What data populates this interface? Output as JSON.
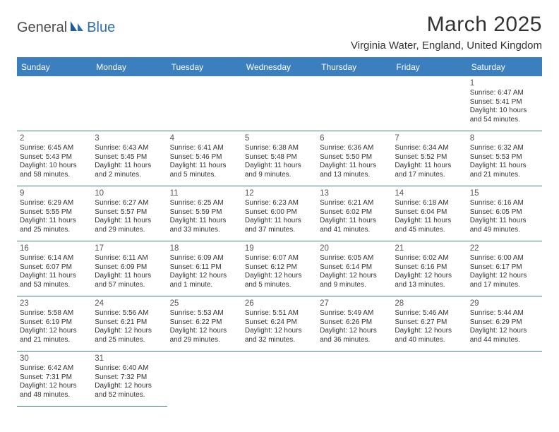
{
  "logo": {
    "text_dark": "General",
    "text_blue": "Blue"
  },
  "title": "March 2025",
  "location": "Virginia Water, England, United Kingdom",
  "colors": {
    "header_bg": "#3b7fbf",
    "header_text": "#ffffff",
    "rule": "#3b7fbf",
    "body_text": "#333333",
    "logo_dark": "#4a4a4a",
    "logo_blue": "#2f6fb0",
    "page_bg": "#ffffff"
  },
  "weekdays": [
    "Sunday",
    "Monday",
    "Tuesday",
    "Wednesday",
    "Thursday",
    "Friday",
    "Saturday"
  ],
  "labels": {
    "sunrise": "Sunrise:",
    "sunset": "Sunset:",
    "daylight": "Daylight:"
  },
  "weeks": [
    [
      null,
      null,
      null,
      null,
      null,
      null,
      {
        "n": "1",
        "sr": "6:47 AM",
        "ss": "5:41 PM",
        "dl": "10 hours and 54 minutes."
      }
    ],
    [
      {
        "n": "2",
        "sr": "6:45 AM",
        "ss": "5:43 PM",
        "dl": "10 hours and 58 minutes."
      },
      {
        "n": "3",
        "sr": "6:43 AM",
        "ss": "5:45 PM",
        "dl": "11 hours and 2 minutes."
      },
      {
        "n": "4",
        "sr": "6:41 AM",
        "ss": "5:46 PM",
        "dl": "11 hours and 5 minutes."
      },
      {
        "n": "5",
        "sr": "6:38 AM",
        "ss": "5:48 PM",
        "dl": "11 hours and 9 minutes."
      },
      {
        "n": "6",
        "sr": "6:36 AM",
        "ss": "5:50 PM",
        "dl": "11 hours and 13 minutes."
      },
      {
        "n": "7",
        "sr": "6:34 AM",
        "ss": "5:52 PM",
        "dl": "11 hours and 17 minutes."
      },
      {
        "n": "8",
        "sr": "6:32 AM",
        "ss": "5:53 PM",
        "dl": "11 hours and 21 minutes."
      }
    ],
    [
      {
        "n": "9",
        "sr": "6:29 AM",
        "ss": "5:55 PM",
        "dl": "11 hours and 25 minutes."
      },
      {
        "n": "10",
        "sr": "6:27 AM",
        "ss": "5:57 PM",
        "dl": "11 hours and 29 minutes."
      },
      {
        "n": "11",
        "sr": "6:25 AM",
        "ss": "5:59 PM",
        "dl": "11 hours and 33 minutes."
      },
      {
        "n": "12",
        "sr": "6:23 AM",
        "ss": "6:00 PM",
        "dl": "11 hours and 37 minutes."
      },
      {
        "n": "13",
        "sr": "6:21 AM",
        "ss": "6:02 PM",
        "dl": "11 hours and 41 minutes."
      },
      {
        "n": "14",
        "sr": "6:18 AM",
        "ss": "6:04 PM",
        "dl": "11 hours and 45 minutes."
      },
      {
        "n": "15",
        "sr": "6:16 AM",
        "ss": "6:05 PM",
        "dl": "11 hours and 49 minutes."
      }
    ],
    [
      {
        "n": "16",
        "sr": "6:14 AM",
        "ss": "6:07 PM",
        "dl": "11 hours and 53 minutes."
      },
      {
        "n": "17",
        "sr": "6:11 AM",
        "ss": "6:09 PM",
        "dl": "11 hours and 57 minutes."
      },
      {
        "n": "18",
        "sr": "6:09 AM",
        "ss": "6:11 PM",
        "dl": "12 hours and 1 minute."
      },
      {
        "n": "19",
        "sr": "6:07 AM",
        "ss": "6:12 PM",
        "dl": "12 hours and 5 minutes."
      },
      {
        "n": "20",
        "sr": "6:05 AM",
        "ss": "6:14 PM",
        "dl": "12 hours and 9 minutes."
      },
      {
        "n": "21",
        "sr": "6:02 AM",
        "ss": "6:16 PM",
        "dl": "12 hours and 13 minutes."
      },
      {
        "n": "22",
        "sr": "6:00 AM",
        "ss": "6:17 PM",
        "dl": "12 hours and 17 minutes."
      }
    ],
    [
      {
        "n": "23",
        "sr": "5:58 AM",
        "ss": "6:19 PM",
        "dl": "12 hours and 21 minutes."
      },
      {
        "n": "24",
        "sr": "5:56 AM",
        "ss": "6:21 PM",
        "dl": "12 hours and 25 minutes."
      },
      {
        "n": "25",
        "sr": "5:53 AM",
        "ss": "6:22 PM",
        "dl": "12 hours and 29 minutes."
      },
      {
        "n": "26",
        "sr": "5:51 AM",
        "ss": "6:24 PM",
        "dl": "12 hours and 32 minutes."
      },
      {
        "n": "27",
        "sr": "5:49 AM",
        "ss": "6:26 PM",
        "dl": "12 hours and 36 minutes."
      },
      {
        "n": "28",
        "sr": "5:46 AM",
        "ss": "6:27 PM",
        "dl": "12 hours and 40 minutes."
      },
      {
        "n": "29",
        "sr": "5:44 AM",
        "ss": "6:29 PM",
        "dl": "12 hours and 44 minutes."
      }
    ],
    [
      {
        "n": "30",
        "sr": "6:42 AM",
        "ss": "7:31 PM",
        "dl": "12 hours and 48 minutes."
      },
      {
        "n": "31",
        "sr": "6:40 AM",
        "ss": "7:32 PM",
        "dl": "12 hours and 52 minutes."
      },
      null,
      null,
      null,
      null,
      null
    ]
  ]
}
